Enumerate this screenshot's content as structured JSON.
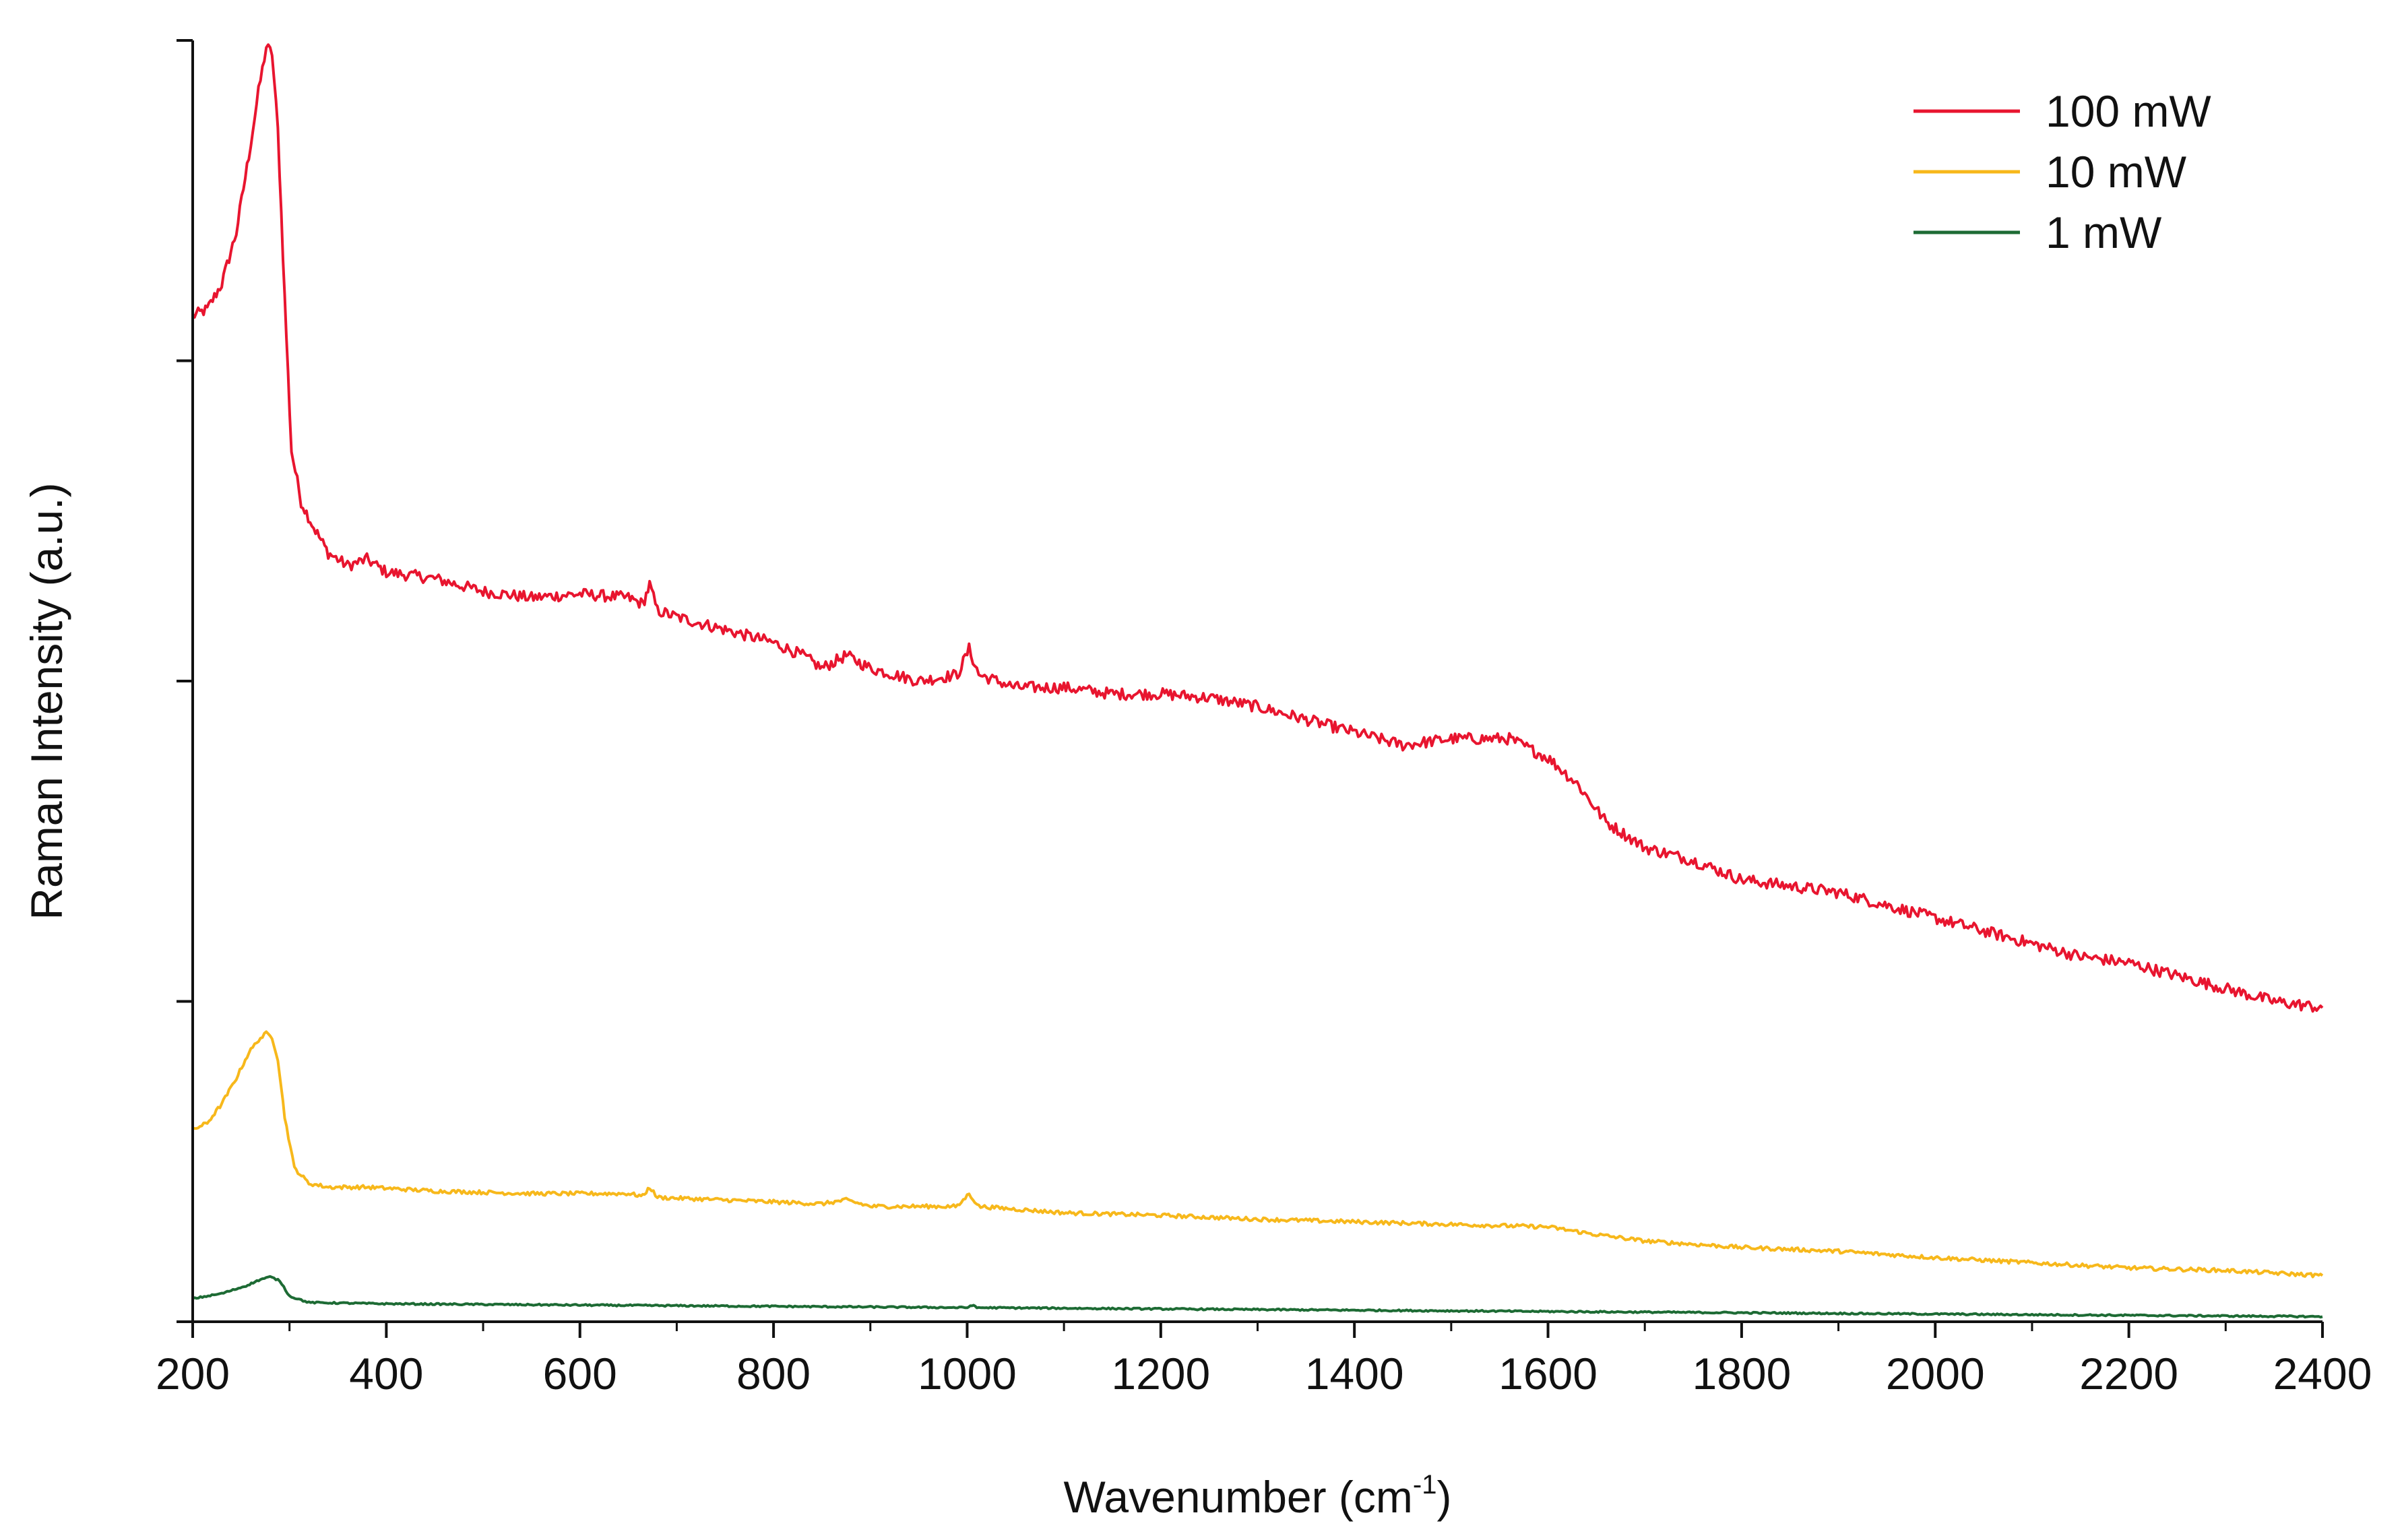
{
  "chart_data": {
    "type": "line",
    "title": "",
    "xlabel": "Wavenumber (cm",
    "xlabel_superscript": "-1",
    "xlabel_suffix": ")",
    "ylabel": "Raman Intensity (a.u.)",
    "xlim": [
      200,
      2400
    ],
    "ylim": [
      0,
      1.0
    ],
    "x_ticks": [
      200,
      400,
      600,
      800,
      1000,
      1200,
      1400,
      1600,
      1800,
      2000,
      2200,
      2400
    ],
    "y_ticks": [
      0,
      0.25,
      0.5,
      0.75,
      1.0
    ],
    "y_tick_labels_shown": false,
    "grid": false,
    "legend_position": "top-right",
    "series": [
      {
        "name": "100 mW",
        "color": "#e8152f",
        "points": [
          [
            200,
            0.785
          ],
          [
            215,
            0.79
          ],
          [
            230,
            0.81
          ],
          [
            245,
            0.85
          ],
          [
            258,
            0.91
          ],
          [
            268,
            0.96
          ],
          [
            276,
            0.995
          ],
          [
            282,
            0.99
          ],
          [
            288,
            0.93
          ],
          [
            295,
            0.8
          ],
          [
            302,
            0.68
          ],
          [
            312,
            0.64
          ],
          [
            325,
            0.62
          ],
          [
            340,
            0.6
          ],
          [
            360,
            0.59
          ],
          [
            380,
            0.595
          ],
          [
            400,
            0.585
          ],
          [
            450,
            0.58
          ],
          [
            500,
            0.57
          ],
          [
            550,
            0.565
          ],
          [
            600,
            0.568
          ],
          [
            650,
            0.565
          ],
          [
            665,
            0.56
          ],
          [
            672,
            0.575
          ],
          [
            680,
            0.555
          ],
          [
            700,
            0.55
          ],
          [
            750,
            0.54
          ],
          [
            800,
            0.53
          ],
          [
            830,
            0.52
          ],
          [
            850,
            0.51
          ],
          [
            875,
            0.52
          ],
          [
            900,
            0.51
          ],
          [
            950,
            0.5
          ],
          [
            990,
            0.505
          ],
          [
            1002,
            0.525
          ],
          [
            1012,
            0.505
          ],
          [
            1050,
            0.495
          ],
          [
            1100,
            0.495
          ],
          [
            1150,
            0.49
          ],
          [
            1200,
            0.49
          ],
          [
            1250,
            0.487
          ],
          [
            1300,
            0.48
          ],
          [
            1350,
            0.47
          ],
          [
            1400,
            0.46
          ],
          [
            1450,
            0.45
          ],
          [
            1500,
            0.455
          ],
          [
            1560,
            0.455
          ],
          [
            1600,
            0.44
          ],
          [
            1630,
            0.42
          ],
          [
            1660,
            0.39
          ],
          [
            1700,
            0.37
          ],
          [
            1750,
            0.36
          ],
          [
            1800,
            0.345
          ],
          [
            1850,
            0.34
          ],
          [
            1900,
            0.335
          ],
          [
            1950,
            0.325
          ],
          [
            2000,
            0.315
          ],
          [
            2050,
            0.305
          ],
          [
            2100,
            0.295
          ],
          [
            2150,
            0.285
          ],
          [
            2200,
            0.28
          ],
          [
            2250,
            0.27
          ],
          [
            2300,
            0.26
          ],
          [
            2350,
            0.25
          ],
          [
            2400,
            0.245
          ]
        ]
      },
      {
        "name": "10 mW",
        "color": "#f7b81b",
        "points": [
          [
            200,
            0.15
          ],
          [
            215,
            0.155
          ],
          [
            230,
            0.17
          ],
          [
            245,
            0.19
          ],
          [
            258,
            0.21
          ],
          [
            268,
            0.22
          ],
          [
            276,
            0.225
          ],
          [
            282,
            0.222
          ],
          [
            288,
            0.205
          ],
          [
            295,
            0.16
          ],
          [
            305,
            0.12
          ],
          [
            320,
            0.108
          ],
          [
            340,
            0.105
          ],
          [
            380,
            0.105
          ],
          [
            450,
            0.102
          ],
          [
            550,
            0.1
          ],
          [
            650,
            0.1
          ],
          [
            665,
            0.098
          ],
          [
            672,
            0.105
          ],
          [
            680,
            0.097
          ],
          [
            750,
            0.095
          ],
          [
            850,
            0.092
          ],
          [
            875,
            0.095
          ],
          [
            900,
            0.09
          ],
          [
            990,
            0.09
          ],
          [
            1002,
            0.1
          ],
          [
            1012,
            0.09
          ],
          [
            1100,
            0.085
          ],
          [
            1200,
            0.083
          ],
          [
            1300,
            0.08
          ],
          [
            1400,
            0.078
          ],
          [
            1500,
            0.076
          ],
          [
            1600,
            0.074
          ],
          [
            1650,
            0.068
          ],
          [
            1700,
            0.063
          ],
          [
            1800,
            0.058
          ],
          [
            1900,
            0.055
          ],
          [
            2000,
            0.05
          ],
          [
            2100,
            0.046
          ],
          [
            2200,
            0.042
          ],
          [
            2300,
            0.04
          ],
          [
            2400,
            0.036
          ]
        ]
      },
      {
        "name": "1 mW",
        "color": "#1d6b34",
        "points": [
          [
            200,
            0.018
          ],
          [
            230,
            0.022
          ],
          [
            255,
            0.028
          ],
          [
            270,
            0.033
          ],
          [
            280,
            0.035
          ],
          [
            290,
            0.032
          ],
          [
            300,
            0.02
          ],
          [
            320,
            0.015
          ],
          [
            400,
            0.014
          ],
          [
            600,
            0.013
          ],
          [
            800,
            0.012
          ],
          [
            1000,
            0.011
          ],
          [
            1005,
            0.013
          ],
          [
            1010,
            0.011
          ],
          [
            1200,
            0.01
          ],
          [
            1400,
            0.009
          ],
          [
            1600,
            0.008
          ],
          [
            1800,
            0.007
          ],
          [
            2000,
            0.006
          ],
          [
            2200,
            0.005
          ],
          [
            2400,
            0.004
          ]
        ]
      }
    ]
  }
}
